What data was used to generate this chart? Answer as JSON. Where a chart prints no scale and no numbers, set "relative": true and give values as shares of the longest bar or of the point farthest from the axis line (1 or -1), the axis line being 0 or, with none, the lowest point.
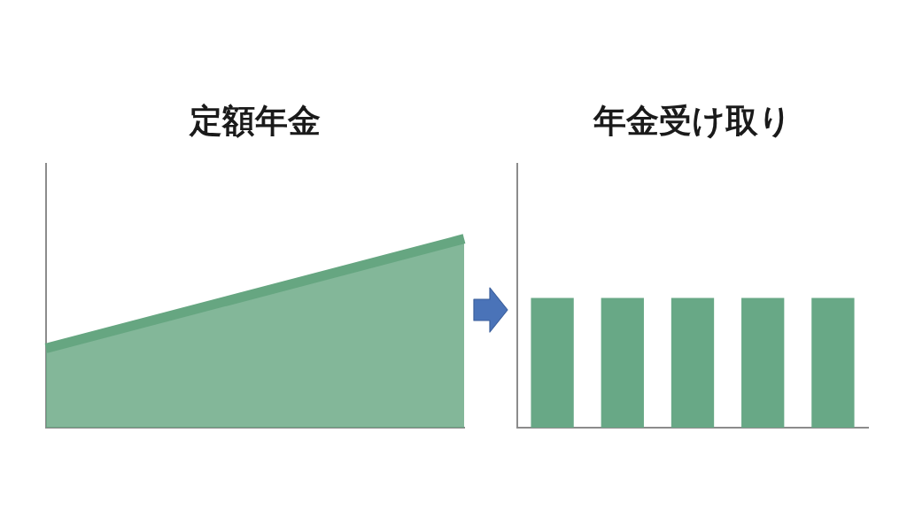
{
  "chart_data": [
    {
      "type": "area",
      "title": "定額年金",
      "categories": [
        null,
        null
      ],
      "relative": true,
      "values": [
        0.42,
        1
      ],
      "color": "#66a681"
    },
    {
      "type": "bar",
      "title": "年金受け取り",
      "categories": [
        null,
        null,
        null,
        null,
        null
      ],
      "relative": true,
      "values": [
        1,
        1,
        1,
        1,
        1
      ],
      "color": "#68a886"
    }
  ]
}
